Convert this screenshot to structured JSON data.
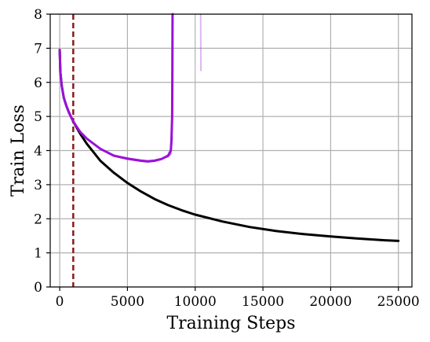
{
  "chart_data": {
    "type": "line",
    "title": "",
    "xlabel": "Training Steps",
    "ylabel": "Train Loss",
    "xlim": [
      -700,
      26000
    ],
    "ylim": [
      0,
      8
    ],
    "grid": true,
    "legend": "none",
    "x_ticks": [
      0,
      5000,
      10000,
      15000,
      20000,
      25000
    ],
    "x_tick_labels": [
      "0",
      "5000",
      "10000",
      "15000",
      "20000",
      "25000"
    ],
    "y_ticks": [
      0,
      1,
      2,
      3,
      4,
      5,
      6,
      7,
      8
    ],
    "y_tick_labels": [
      "0",
      "1",
      "2",
      "3",
      "4",
      "5",
      "6",
      "7",
      "8"
    ],
    "vline": {
      "x": 1000,
      "color": "#8b1a1a",
      "style": "dashed"
    },
    "series": [
      {
        "color": "#000000",
        "opacity": 1,
        "width": 3,
        "x": [
          0,
          50,
          150,
          300,
          500,
          700,
          1000,
          1500,
          2000,
          3000,
          4000,
          5000,
          6000,
          7000,
          8000,
          9000,
          10000,
          12000,
          14000,
          16000,
          18000,
          20000,
          22000,
          24000,
          25000
        ],
        "y": [
          6.95,
          6.3,
          5.9,
          5.55,
          5.3,
          5.1,
          4.85,
          4.5,
          4.2,
          3.7,
          3.35,
          3.05,
          2.8,
          2.58,
          2.4,
          2.25,
          2.12,
          1.92,
          1.76,
          1.64,
          1.55,
          1.48,
          1.42,
          1.37,
          1.35
        ]
      },
      {
        "color": "#9b30d9",
        "opacity": 0.35,
        "width": 2,
        "x": [
          10400,
          10420
        ],
        "y": [
          8.0,
          6.35
        ]
      },
      {
        "color": "#9b30d9",
        "opacity": 0.6,
        "width": 2,
        "x": [
          0,
          50,
          150,
          300,
          500,
          700,
          1000,
          1500,
          2000,
          3000,
          4000,
          5000,
          6000,
          6500,
          7000,
          7500,
          8000,
          8200,
          8300
        ],
        "y": [
          6.95,
          6.3,
          5.9,
          5.55,
          5.3,
          5.1,
          4.85,
          4.55,
          4.35,
          4.05,
          3.85,
          3.78,
          3.72,
          3.7,
          3.72,
          3.76,
          3.82,
          3.9,
          4.4
        ]
      },
      {
        "color": "#9b11d9",
        "opacity": 1,
        "width": 3,
        "x": [
          0,
          50,
          150,
          300,
          500,
          700,
          1000,
          1500,
          2000,
          3000,
          4000,
          5000,
          6000,
          6500,
          7000,
          7500,
          8000,
          8200,
          8250,
          8300,
          8320,
          8330
        ],
        "y": [
          6.95,
          6.3,
          5.9,
          5.55,
          5.3,
          5.1,
          4.85,
          4.55,
          4.35,
          4.05,
          3.85,
          3.76,
          3.7,
          3.68,
          3.7,
          3.75,
          3.85,
          4.0,
          4.3,
          5.0,
          6.5,
          8.0
        ]
      }
    ]
  }
}
